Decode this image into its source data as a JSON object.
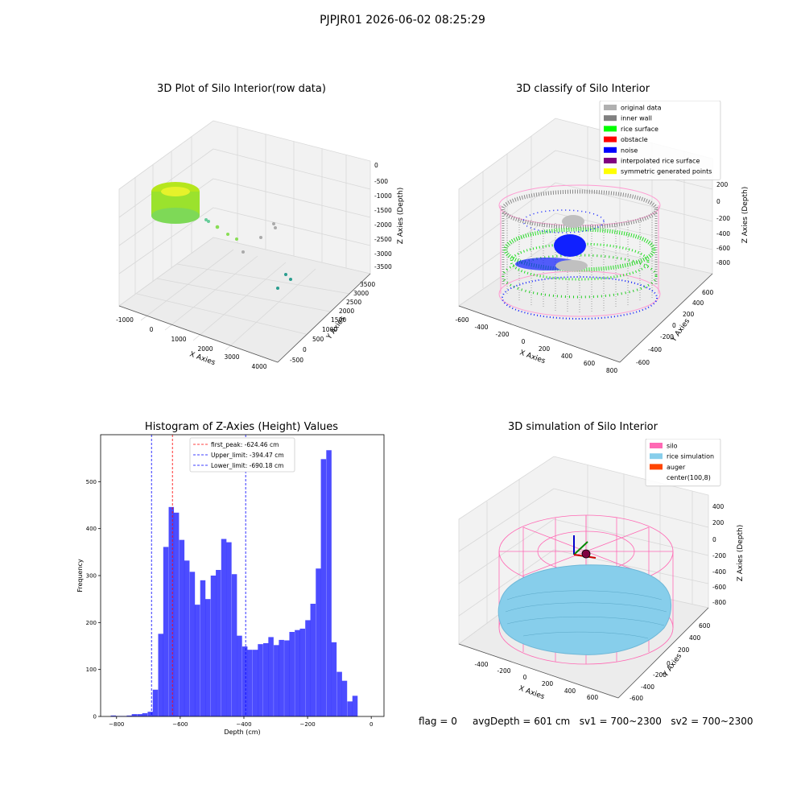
{
  "figure": {
    "suptitle": "PJPJR01 2026-06-02 08:25:29"
  },
  "panels": {
    "raw": {
      "title": "3D Plot of Silo Interior(row data)",
      "xlabel": "X Axies",
      "ylabel": "Y Axies",
      "zlabel": "Z Axies (Depth)",
      "xticks": [
        "-1000",
        "0",
        "1000",
        "2000",
        "3000",
        "4000"
      ],
      "yticks": [
        "-500",
        "0",
        "500",
        "1000",
        "1500",
        "2000",
        "2500",
        "3000",
        "3500"
      ],
      "zticks": [
        "0",
        "-500",
        "-1000",
        "-1500",
        "-2000",
        "-2500",
        "-3000",
        "-3500"
      ]
    },
    "classify": {
      "title": "3D classify of Silo Interior",
      "xlabel": "X Axies",
      "ylabel": "Y Axies",
      "zlabel": "Z Axies (Depth)",
      "xticks": [
        "-600",
        "-400",
        "-200",
        "0",
        "200",
        "400",
        "600",
        "800"
      ],
      "yticks": [
        "-600",
        "-400",
        "-200",
        "0",
        "200",
        "400",
        "600"
      ],
      "zticks": [
        "200",
        "0",
        "-200",
        "-400",
        "-600",
        "-800"
      ],
      "legend": [
        {
          "label": "original data",
          "color": "#b0b0b0"
        },
        {
          "label": "inner wall",
          "color": "#808080"
        },
        {
          "label": "rice surface",
          "color": "#00ff00"
        },
        {
          "label": "obstacle",
          "color": "#ff0000"
        },
        {
          "label": "noise",
          "color": "#0000ff"
        },
        {
          "label": "interpolated rice surface",
          "color": "#800080"
        },
        {
          "label": "symmetric generated points",
          "color": "#ffff00"
        }
      ]
    },
    "simulation": {
      "title": "3D simulation of Silo Interior",
      "xlabel": "X Axies",
      "ylabel": "Y Axies",
      "zlabel": "Z Axies (Depth)",
      "xticks": [
        "-400",
        "-200",
        "0",
        "200",
        "400",
        "600"
      ],
      "yticks": [
        "-600",
        "-400",
        "-200",
        "0",
        "200",
        "400",
        "600"
      ],
      "zticks": [
        "400",
        "200",
        "0",
        "-200",
        "-400",
        "-600",
        "-800"
      ],
      "legend": [
        {
          "label": "silo",
          "color": "#ff69b4"
        },
        {
          "label": "rice simulation",
          "color": "#87ceeb"
        },
        {
          "label": "auger",
          "color": "#ff4500"
        },
        {
          "label": "center(100,8)",
          "color": "#ffffff"
        }
      ]
    }
  },
  "status": {
    "flag": "flag = 0",
    "avg_depth": "avgDepth = 601 cm",
    "sv1": "sv1 = 700~2300",
    "sv2": "sv2 = 700~2300"
  },
  "chart_data": [
    {
      "type": "bar",
      "title": "Histogram of Z-Axies (Height) Values",
      "xlabel": "Depth (cm)",
      "ylabel": "Frequency",
      "xlim": [
        -850,
        40
      ],
      "ylim": [
        0,
        600
      ],
      "xticks": [
        -800,
        -600,
        -400,
        -200,
        0
      ],
      "yticks": [
        0,
        100,
        200,
        300,
        400,
        500
      ],
      "bar_color": "#0000ff",
      "bin_width": 16.5,
      "bins": [
        {
          "x": -810,
          "v": 2
        },
        {
          "x": -793,
          "v": 1
        },
        {
          "x": -777,
          "v": 1
        },
        {
          "x": -760,
          "v": 2
        },
        {
          "x": -744,
          "v": 5
        },
        {
          "x": -727,
          "v": 5
        },
        {
          "x": -711,
          "v": 7
        },
        {
          "x": -694,
          "v": 10
        },
        {
          "x": -678,
          "v": 57
        },
        {
          "x": -661,
          "v": 176
        },
        {
          "x": -645,
          "v": 361
        },
        {
          "x": -628,
          "v": 446
        },
        {
          "x": -612,
          "v": 434
        },
        {
          "x": -595,
          "v": 376
        },
        {
          "x": -579,
          "v": 332
        },
        {
          "x": -562,
          "v": 308
        },
        {
          "x": -546,
          "v": 238
        },
        {
          "x": -529,
          "v": 290
        },
        {
          "x": -513,
          "v": 250
        },
        {
          "x": -496,
          "v": 300
        },
        {
          "x": -480,
          "v": 312
        },
        {
          "x": -463,
          "v": 378
        },
        {
          "x": -447,
          "v": 371
        },
        {
          "x": -430,
          "v": 303
        },
        {
          "x": -414,
          "v": 172
        },
        {
          "x": -397,
          "v": 149
        },
        {
          "x": -381,
          "v": 142
        },
        {
          "x": -364,
          "v": 142
        },
        {
          "x": -348,
          "v": 154
        },
        {
          "x": -331,
          "v": 156
        },
        {
          "x": -315,
          "v": 169
        },
        {
          "x": -298,
          "v": 152
        },
        {
          "x": -282,
          "v": 163
        },
        {
          "x": -265,
          "v": 162
        },
        {
          "x": -249,
          "v": 180
        },
        {
          "x": -232,
          "v": 184
        },
        {
          "x": -216,
          "v": 187
        },
        {
          "x": -199,
          "v": 205
        },
        {
          "x": -183,
          "v": 240
        },
        {
          "x": -166,
          "v": 315
        },
        {
          "x": -150,
          "v": 548
        },
        {
          "x": -133,
          "v": 567
        },
        {
          "x": -117,
          "v": 158
        },
        {
          "x": -100,
          "v": 95
        },
        {
          "x": -84,
          "v": 76
        },
        {
          "x": -67,
          "v": 32
        },
        {
          "x": -51,
          "v": 44
        }
      ],
      "vlines": [
        {
          "x": -624.46,
          "color": "#ff0000",
          "label": "first_peak: -624.46 cm"
        },
        {
          "x": -394.47,
          "color": "#0000ff",
          "label": "Upper_limit: -394.47 cm"
        },
        {
          "x": -690.18,
          "color": "#0000ff",
          "label": "Lower_limit: -690.18 cm"
        }
      ]
    }
  ]
}
